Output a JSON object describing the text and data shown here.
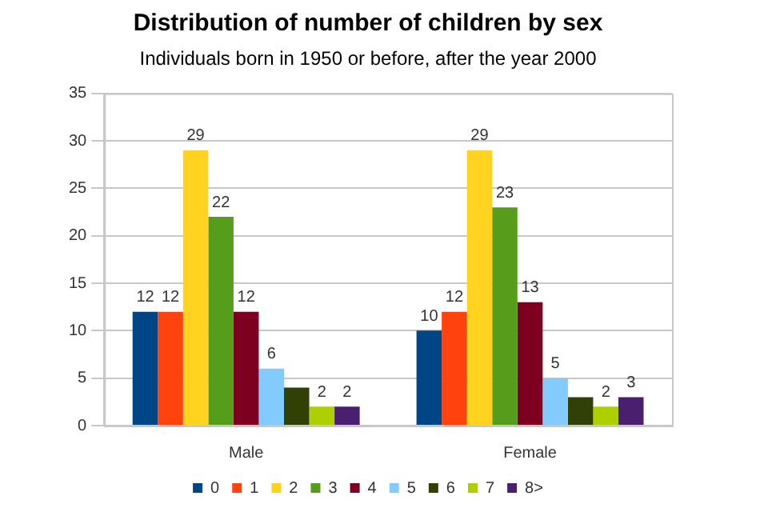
{
  "chart_data": {
    "type": "bar",
    "title": "Distribution of number of children by sex",
    "subtitle": "Individuals born in 1950 or before, after the year 2000",
    "categories": [
      "Male",
      "Female"
    ],
    "series": [
      {
        "name": "0",
        "color": "#004586",
        "values": [
          12,
          10
        ],
        "value_labels": [
          "12",
          "10"
        ]
      },
      {
        "name": "1",
        "color": "#ff420e",
        "values": [
          12,
          12
        ],
        "value_labels": [
          "12",
          "12"
        ]
      },
      {
        "name": "2",
        "color": "#ffd320",
        "values": [
          29,
          29
        ],
        "value_labels": [
          "29",
          "29"
        ]
      },
      {
        "name": "3",
        "color": "#579d1c",
        "values": [
          22,
          23
        ],
        "value_labels": [
          "22",
          "23"
        ]
      },
      {
        "name": "4",
        "color": "#7e0021",
        "values": [
          12,
          13
        ],
        "value_labels": [
          "12",
          "13"
        ]
      },
      {
        "name": "5",
        "color": "#83caff",
        "values": [
          6,
          5
        ],
        "value_labels": [
          "6",
          "5"
        ]
      },
      {
        "name": "6",
        "color": "#314004",
        "values": [
          4,
          3
        ],
        "value_labels": [
          null,
          null
        ]
      },
      {
        "name": "7",
        "color": "#aecf00",
        "values": [
          2,
          2
        ],
        "value_labels": [
          "2",
          "2"
        ]
      },
      {
        "name": "8>",
        "color": "#4b1f6f",
        "values": [
          2,
          3
        ],
        "value_labels": [
          "2",
          "3"
        ]
      }
    ],
    "ylim": [
      0,
      35
    ],
    "yticks": [
      0,
      5,
      10,
      15,
      20,
      25,
      30,
      35
    ],
    "grid": "y",
    "legend": "bottom"
  }
}
